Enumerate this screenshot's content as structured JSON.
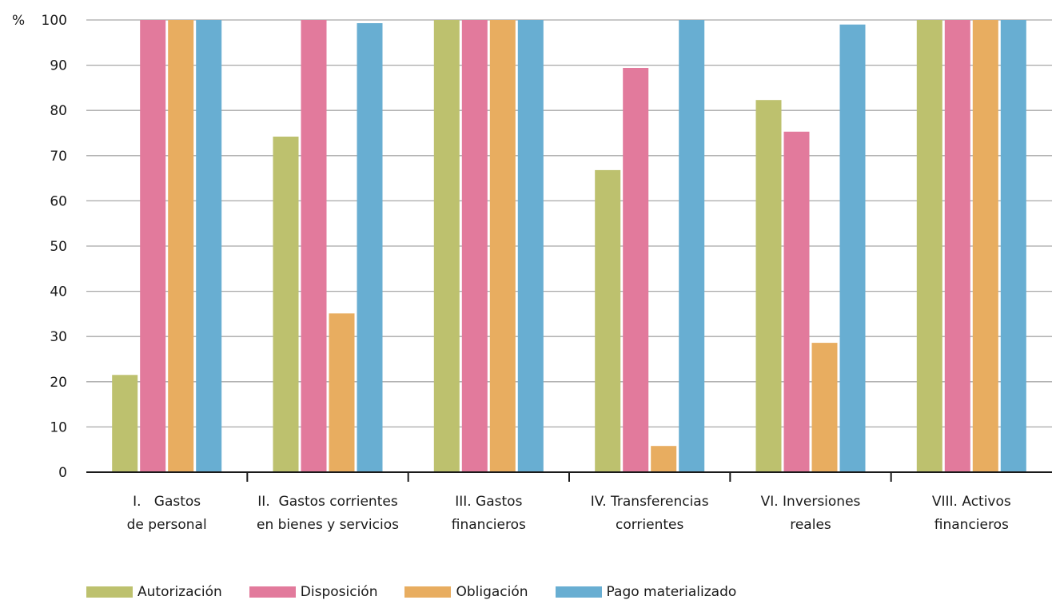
{
  "chart_data": {
    "type": "bar",
    "unit_label": "%",
    "ylim": [
      0,
      100
    ],
    "yticks": [
      "0",
      "10",
      "20",
      "30",
      "40",
      "50",
      "60",
      "70",
      "80",
      "90",
      "100"
    ],
    "grid": true,
    "legend_position": "bottom-left",
    "categories": [
      [
        "I.   Gastos",
        "de personal"
      ],
      [
        "II.  Gastos corrientes",
        "en bienes y servicios"
      ],
      [
        "III. Gastos",
        "financieros"
      ],
      [
        "IV. Transferencias",
        "corrientes"
      ],
      [
        "VI. Inversiones",
        "reales"
      ],
      [
        "VIII. Activos",
        "financieros"
      ]
    ],
    "series": [
      {
        "name": "Autorización",
        "color": "#bdc16e",
        "values": [
          21.5,
          74.2,
          100,
          66.8,
          82.3,
          100
        ]
      },
      {
        "name": "Disposición",
        "color": "#e27a9c",
        "values": [
          100,
          100,
          100,
          89.4,
          75.3,
          100
        ]
      },
      {
        "name": "Obligación",
        "color": "#e8ad60",
        "values": [
          100,
          35.1,
          100,
          5.8,
          28.6,
          100
        ]
      },
      {
        "name": "Pago materializado",
        "color": "#68aed2",
        "values": [
          100,
          99.3,
          100,
          100,
          99.0,
          100
        ]
      }
    ]
  }
}
